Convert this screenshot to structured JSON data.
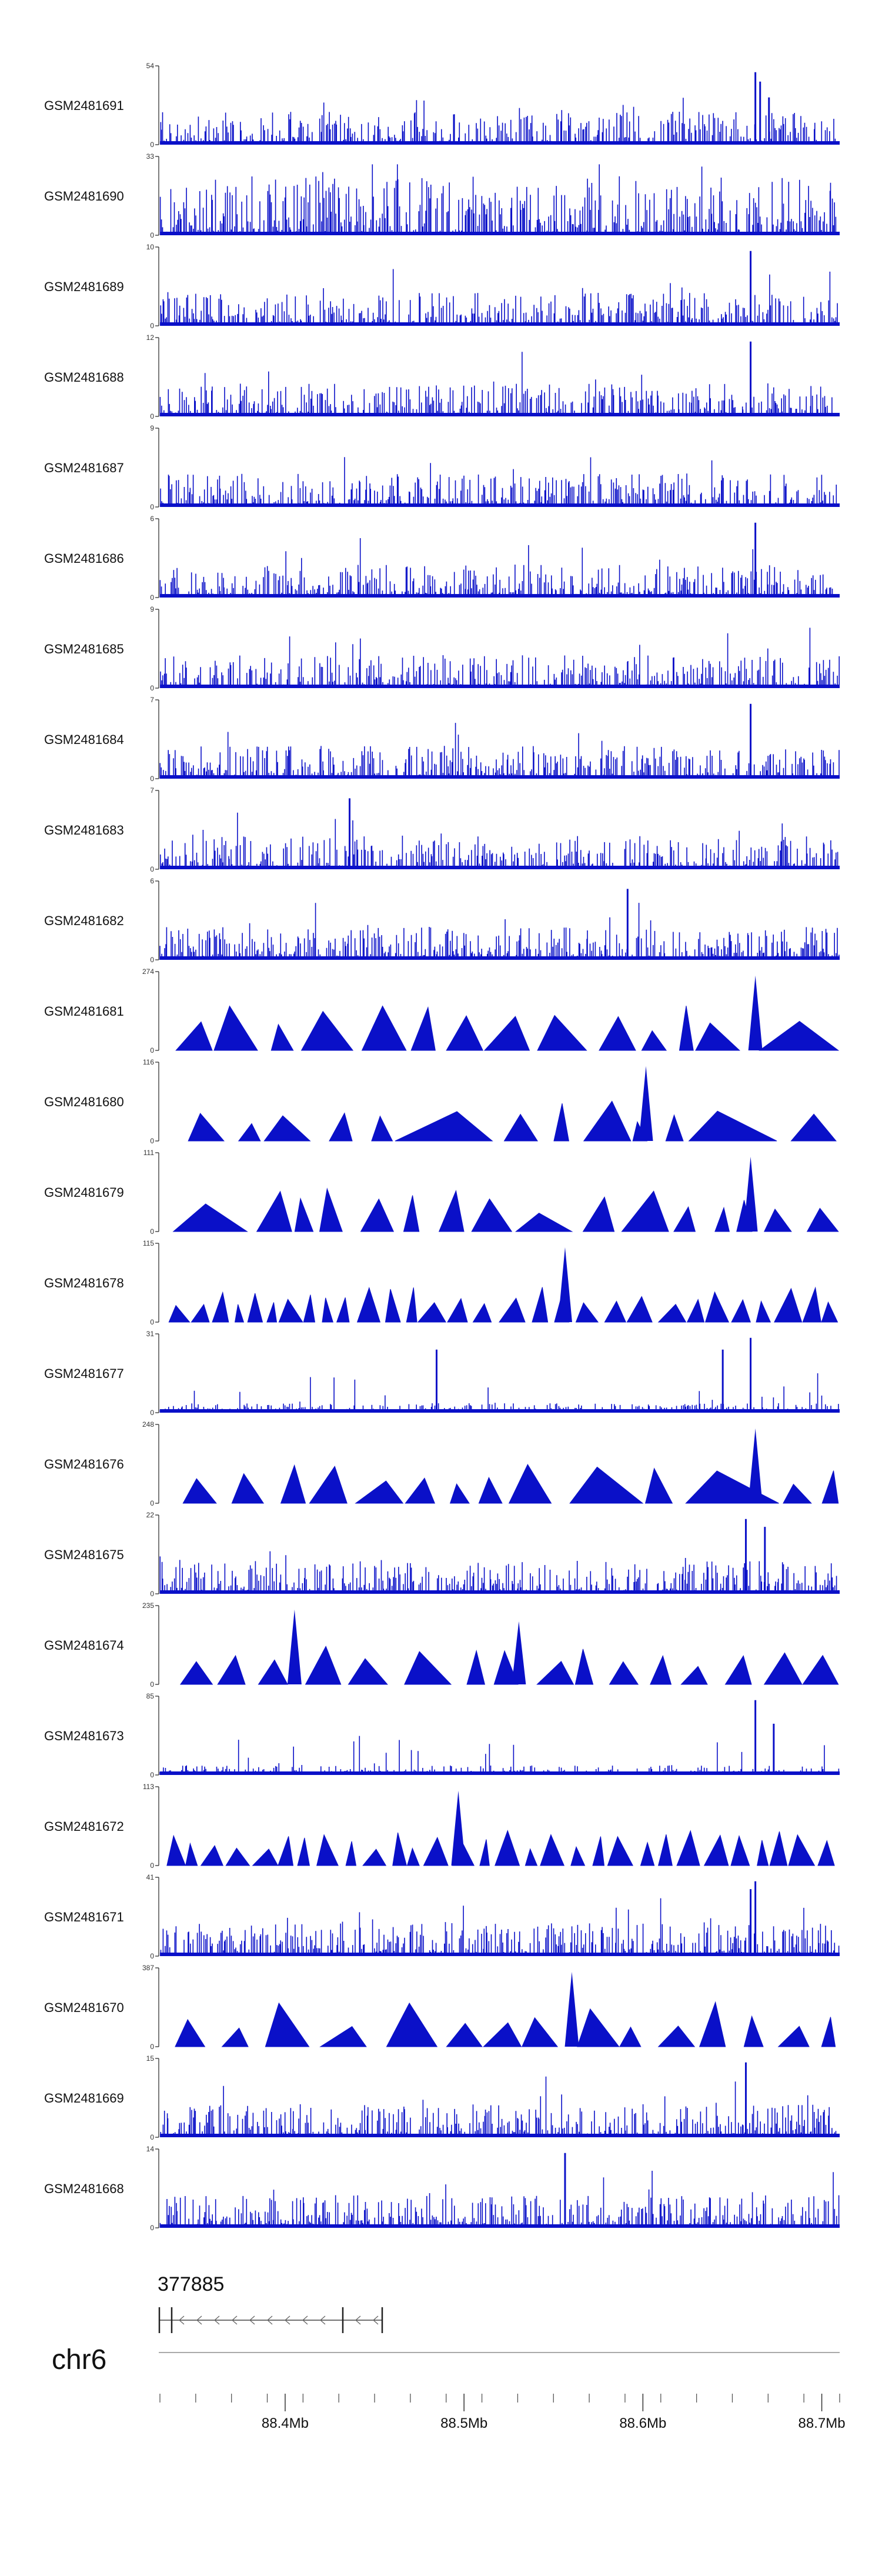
{
  "chart_data": {
    "type": "area",
    "title": "",
    "colors": {
      "signal": "#0a10c8",
      "axis": "#222222",
      "ideogram": "#aaaaaa"
    },
    "tracks": [
      {
        "name": "GSM2481691",
        "ymax": 54,
        "ylim": [
          0,
          54
        ],
        "style": "dense",
        "seed": 11,
        "peaks": [
          [
            0.876,
            0.92
          ],
          [
            0.883,
            0.8
          ],
          [
            0.896,
            0.6
          ]
        ]
      },
      {
        "name": "GSM2481690",
        "ymax": 33,
        "ylim": [
          0,
          33
        ],
        "style": "dense-tall",
        "seed": 12,
        "peaks": []
      },
      {
        "name": "GSM2481689",
        "ymax": 10,
        "ylim": [
          0,
          10
        ],
        "style": "dense",
        "seed": 13,
        "peaks": [
          [
            0.869,
            0.95
          ]
        ]
      },
      {
        "name": "GSM2481688",
        "ymax": 12,
        "ylim": [
          0,
          12
        ],
        "style": "dense",
        "seed": 14,
        "peaks": [
          [
            0.869,
            0.95
          ]
        ]
      },
      {
        "name": "GSM2481687",
        "ymax": 9,
        "ylim": [
          0,
          9
        ],
        "style": "dense",
        "seed": 15,
        "peaks": []
      },
      {
        "name": "GSM2481686",
        "ymax": 6,
        "ylim": [
          0,
          6
        ],
        "style": "dense",
        "seed": 16,
        "peaks": [
          [
            0.876,
            0.95
          ]
        ]
      },
      {
        "name": "GSM2481685",
        "ymax": 9,
        "ylim": [
          0,
          9
        ],
        "style": "dense",
        "seed": 17,
        "peaks": []
      },
      {
        "name": "GSM2481684",
        "ymax": 7,
        "ylim": [
          0,
          7
        ],
        "style": "dense",
        "seed": 18,
        "peaks": [
          [
            0.869,
            0.95
          ]
        ]
      },
      {
        "name": "GSM2481683",
        "ymax": 7,
        "ylim": [
          0,
          7
        ],
        "style": "dense",
        "seed": 19,
        "peaks": [
          [
            0.279,
            0.9
          ]
        ]
      },
      {
        "name": "GSM2481682",
        "ymax": 6,
        "ylim": [
          0,
          6
        ],
        "style": "dense",
        "seed": 20,
        "peaks": [
          [
            0.688,
            0.9
          ]
        ]
      },
      {
        "name": "GSM2481681",
        "ymax": 274,
        "ylim": [
          0,
          274
        ],
        "style": "triangles",
        "seed": 21,
        "peaks": [
          [
            0.876,
            0.95
          ]
        ]
      },
      {
        "name": "GSM2481680",
        "ymax": 116,
        "ylim": [
          0,
          116
        ],
        "style": "triangles",
        "seed": 22,
        "peaks": [
          [
            0.715,
            0.95
          ]
        ]
      },
      {
        "name": "GSM2481679",
        "ymax": 111,
        "ylim": [
          0,
          111
        ],
        "style": "triangles",
        "seed": 23,
        "peaks": [
          [
            0.869,
            0.95
          ]
        ]
      },
      {
        "name": "GSM2481678",
        "ymax": 115,
        "ylim": [
          0,
          115
        ],
        "style": "triangles-dense",
        "seed": 24,
        "peaks": [
          [
            0.596,
            0.95
          ]
        ]
      },
      {
        "name": "GSM2481677",
        "ymax": 31,
        "ylim": [
          0,
          31
        ],
        "style": "dense-low",
        "seed": 25,
        "peaks": [
          [
            0.407,
            0.8
          ],
          [
            0.828,
            0.8
          ],
          [
            0.869,
            0.95
          ]
        ]
      },
      {
        "name": "GSM2481676",
        "ymax": 248,
        "ylim": [
          0,
          248
        ],
        "style": "triangles",
        "seed": 26,
        "peaks": [
          [
            0.876,
            0.95
          ]
        ]
      },
      {
        "name": "GSM2481675",
        "ymax": 22,
        "ylim": [
          0,
          22
        ],
        "style": "dense",
        "seed": 27,
        "peaks": [
          [
            0.862,
            0.95
          ],
          [
            0.89,
            0.85
          ]
        ]
      },
      {
        "name": "GSM2481674",
        "ymax": 235,
        "ylim": [
          0,
          235
        ],
        "style": "triangles",
        "seed": 28,
        "peaks": [
          [
            0.198,
            0.95
          ],
          [
            0.528,
            0.8
          ]
        ]
      },
      {
        "name": "GSM2481673",
        "ymax": 85,
        "ylim": [
          0,
          85
        ],
        "style": "dense-low",
        "seed": 29,
        "peaks": [
          [
            0.876,
            0.95
          ],
          [
            0.903,
            0.65
          ]
        ]
      },
      {
        "name": "GSM2481672",
        "ymax": 113,
        "ylim": [
          0,
          113
        ],
        "style": "triangles-dense",
        "seed": 30,
        "peaks": [
          [
            0.439,
            0.95
          ]
        ]
      },
      {
        "name": "GSM2481671",
        "ymax": 41,
        "ylim": [
          0,
          41
        ],
        "style": "dense",
        "seed": 31,
        "peaks": [
          [
            0.869,
            0.85
          ],
          [
            0.876,
            0.95
          ]
        ]
      },
      {
        "name": "GSM2481670",
        "ymax": 387,
        "ylim": [
          0,
          387
        ],
        "style": "triangles",
        "seed": 32,
        "peaks": [
          [
            0.606,
            0.95
          ]
        ]
      },
      {
        "name": "GSM2481669",
        "ymax": 15,
        "ylim": [
          0,
          15
        ],
        "style": "dense",
        "seed": 33,
        "peaks": [
          [
            0.862,
            0.95
          ]
        ]
      },
      {
        "name": "GSM2481668",
        "ymax": 14,
        "ylim": [
          0,
          14
        ],
        "style": "dense",
        "seed": 34,
        "peaks": [
          [
            0.596,
            0.95
          ]
        ]
      }
    ],
    "baseline_label": "0",
    "gene": {
      "label": "377885",
      "strand": "-"
    },
    "chromosome": "chr6",
    "x_axis": {
      "xlim_mb": [
        88.33,
        88.71
      ],
      "tick_labels": [
        "88.4Mb",
        "88.5Mb",
        "88.6Mb",
        "88.7Mb"
      ],
      "tick_values_mb": [
        88.4,
        88.5,
        88.6,
        88.7
      ],
      "minor_tick_step_mb": 0.02
    }
  }
}
